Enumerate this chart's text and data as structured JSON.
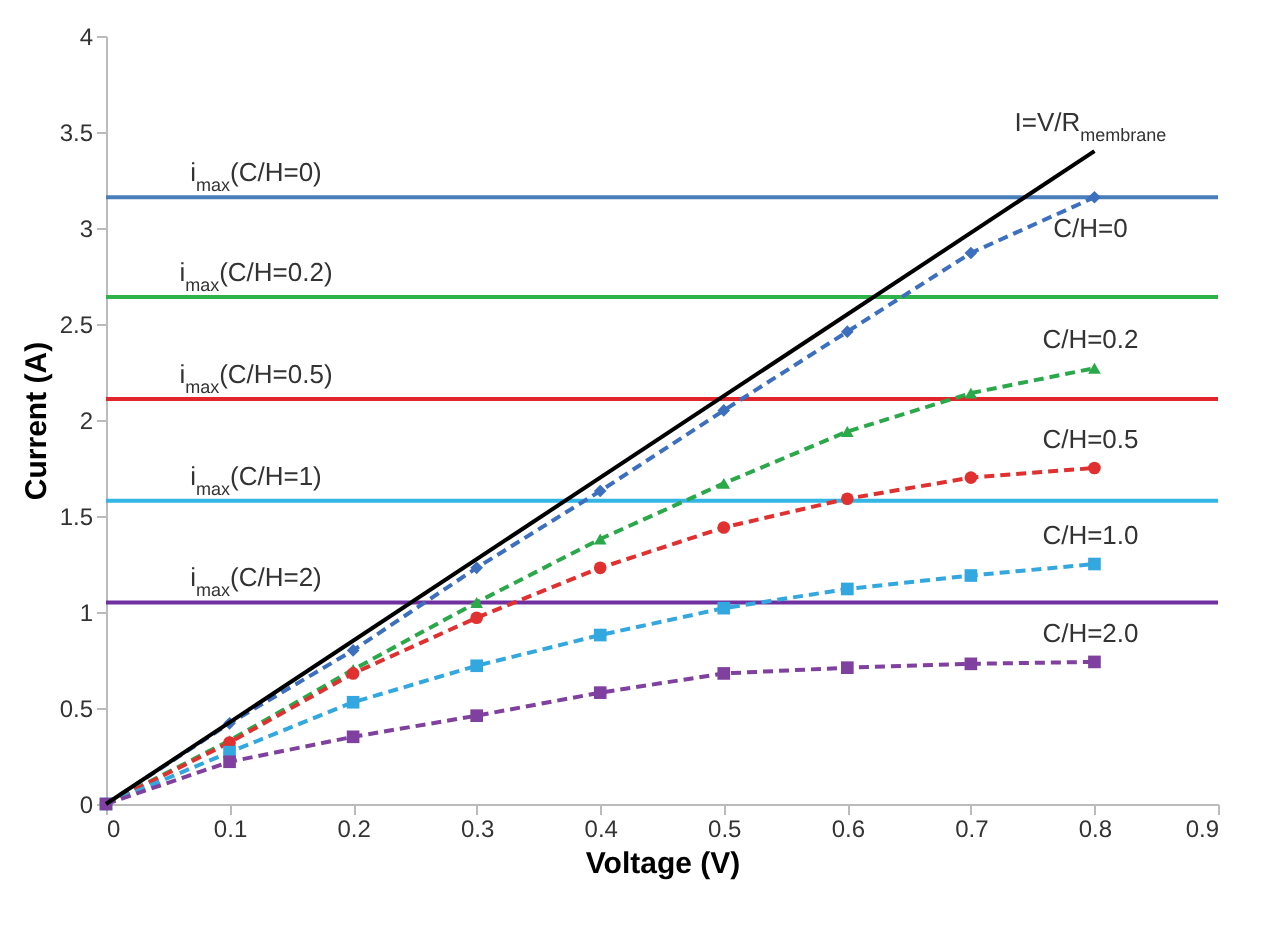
{
  "chart_data": {
    "type": "line",
    "xlabel": "Voltage (V)",
    "ylabel": "Current (A)",
    "x": [
      0,
      0.1,
      0.2,
      0.3,
      0.4,
      0.5,
      0.6,
      0.7,
      0.8
    ],
    "xlim": [
      0,
      0.9
    ],
    "xticks": [
      0,
      0.1,
      0.2,
      0.3,
      0.4,
      0.5,
      0.6,
      0.7,
      0.8,
      0.9
    ],
    "ylim": [
      0,
      4
    ],
    "yticks": [
      0,
      0.5,
      1,
      1.5,
      2,
      2.5,
      3,
      3.5,
      4
    ],
    "grid": false,
    "series": [
      {
        "name": "C/H=0",
        "color": "#3d6fbf",
        "marker": "diamond",
        "line_style": "dashed",
        "values": [
          0,
          0.42,
          0.8,
          1.23,
          1.63,
          2.05,
          2.46,
          2.87,
          3.16
        ]
      },
      {
        "name": "C/H=0.2",
        "color": "#2aa84a",
        "marker": "triangle",
        "line_style": "dashed",
        "values": [
          0,
          0.33,
          0.7,
          1.05,
          1.38,
          1.67,
          1.94,
          2.14,
          2.27
        ]
      },
      {
        "name": "C/H=0.5",
        "color": "#e03030",
        "marker": "circle",
        "line_style": "dashed",
        "values": [
          0,
          0.32,
          0.68,
          0.97,
          1.23,
          1.44,
          1.59,
          1.7,
          1.75
        ]
      },
      {
        "name": "C/H=1.0",
        "color": "#33a8e0",
        "marker": "square",
        "line_style": "dashed",
        "values": [
          0,
          0.27,
          0.53,
          0.72,
          0.88,
          1.02,
          1.12,
          1.19,
          1.25
        ]
      },
      {
        "name": "C/H=2.0",
        "color": "#8040a0",
        "marker": "square",
        "line_style": "dashed",
        "values": [
          0,
          0.22,
          0.35,
          0.46,
          0.58,
          0.68,
          0.71,
          0.73,
          0.74
        ]
      },
      {
        "name": "I=V/R$_{membrane}$",
        "color": "#000000",
        "marker": "none",
        "line_style": "solid",
        "x": [
          0,
          0.8
        ],
        "values": [
          0,
          3.4
        ]
      }
    ],
    "ref_lines": [
      {
        "axis": "y",
        "value": 3.16,
        "color": "#4a7ebb"
      },
      {
        "axis": "y",
        "value": 2.64,
        "color": "#2db34a"
      },
      {
        "axis": "y",
        "value": 2.11,
        "color": "#e0262a"
      },
      {
        "axis": "y",
        "value": 1.58,
        "color": "#33b5e5"
      },
      {
        "axis": "y",
        "value": 1.05,
        "color": "#7030a0"
      }
    ],
    "annotations": [
      {
        "text": "i$_{max}$(C/H=0)",
        "y": 3.16
      },
      {
        "text": "i$_{max}$(C/H=0.2)",
        "y": 2.64
      },
      {
        "text": "i$_{max}$(C/H=0.5)",
        "y": 2.11
      },
      {
        "text": "i$_{max}$(C/H=1)",
        "y": 1.58
      },
      {
        "text": "i$_{max}$(C/H=2)",
        "y": 1.05
      }
    ]
  }
}
